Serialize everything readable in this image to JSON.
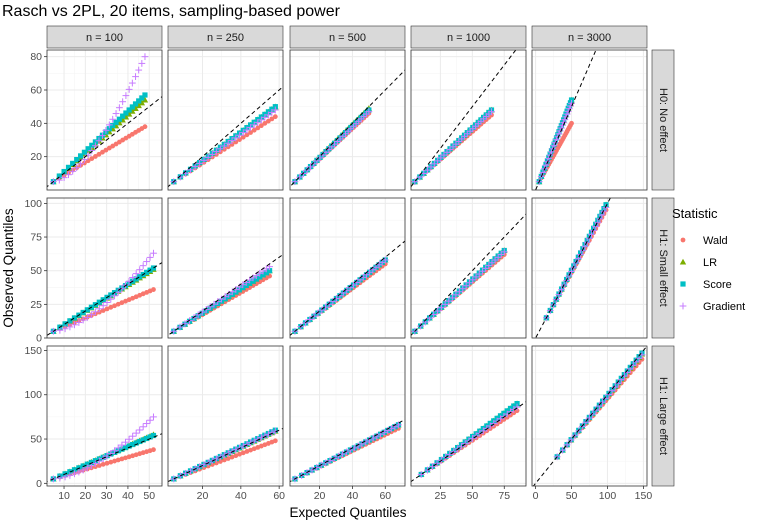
{
  "colors": {
    "Wald": "#F8766D",
    "LR": "#7CAE00",
    "Score": "#00BFC4",
    "Gradient": "#C77CFF",
    "strip_fill": "#D9D9D9",
    "grid_major": "#EBEBEB",
    "grid_minor": "#F5F5F5",
    "panel_border": "#333333"
  },
  "chart_data": {
    "type": "scatter",
    "title": "Rasch vs 2PL, 20 items, sampling-based power",
    "xlabel": "Expected Quantiles",
    "ylabel": "Observed Quantiles",
    "reference_line": "y = x (dashed)",
    "grid": true,
    "legend": {
      "title": "Statistic",
      "placement": "right",
      "entries": [
        {
          "name": "Wald",
          "shape": "circle"
        },
        {
          "name": "LR",
          "shape": "triangle"
        },
        {
          "name": "Score",
          "shape": "square"
        },
        {
          "name": "Gradient",
          "shape": "plus"
        }
      ]
    },
    "columns": [
      {
        "label": "n = 100",
        "xlim": [
          2,
          56
        ],
        "ticks": [
          10,
          20,
          30,
          40,
          50
        ]
      },
      {
        "label": "n = 250",
        "xlim": [
          2,
          62
        ],
        "ticks": [
          20,
          40,
          60
        ]
      },
      {
        "label": "n = 500",
        "xlim": [
          2,
          72
        ],
        "ticks": [
          20,
          40,
          60
        ]
      },
      {
        "label": "n = 1000",
        "xlim": [
          2,
          92
        ],
        "ticks": [
          25,
          50,
          75
        ]
      },
      {
        "label": "n = 3000",
        "xlim": [
          -5,
          155
        ],
        "ticks": [
          0,
          50,
          100,
          150
        ]
      }
    ],
    "rows": [
      {
        "label": "H0: No effect",
        "ylim": [
          0,
          84
        ],
        "ticks": [
          20,
          40,
          60,
          80
        ]
      },
      {
        "label": "H1: Small effect",
        "ylim": [
          0,
          104
        ],
        "ticks": [
          0,
          25,
          50,
          75,
          100
        ]
      },
      {
        "label": "H1: Large effect",
        "ylim": [
          -3,
          155
        ],
        "ticks": [
          0,
          50,
          100,
          150
        ]
      }
    ],
    "panels": [
      [
        {
          "x": [
            5,
            48
          ],
          "Wald": [
            5,
            38
          ],
          "LR": [
            5,
            54
          ],
          "Score": [
            5,
            57
          ],
          "Gradient": [
            5,
            80
          ]
        },
        {
          "x": [
            5,
            58
          ],
          "Wald": [
            5,
            44
          ],
          "LR": [
            5,
            50
          ],
          "Score": [
            5,
            50
          ],
          "Gradient": [
            5,
            48
          ]
        },
        {
          "x": [
            5,
            50
          ],
          "Wald": [
            5,
            46
          ],
          "LR": [
            5,
            49
          ],
          "Score": [
            5,
            48
          ],
          "Gradient": [
            5,
            47
          ]
        },
        {
          "x": [
            5,
            65
          ],
          "Wald": [
            5,
            45
          ],
          "LR": [
            5,
            48
          ],
          "Score": [
            5,
            48
          ],
          "Gradient": [
            5,
            47
          ]
        },
        {
          "x": [
            5,
            50
          ],
          "Wald": [
            5,
            40
          ],
          "LR": [
            5,
            54
          ],
          "Score": [
            5,
            54
          ],
          "Gradient": [
            5,
            52
          ]
        }
      ],
      [
        {
          "x": [
            5,
            52
          ],
          "Wald": [
            5,
            36
          ],
          "LR": [
            5,
            51
          ],
          "Score": [
            5,
            52
          ],
          "Gradient": [
            5,
            63
          ]
        },
        {
          "x": [
            5,
            55
          ],
          "Wald": [
            5,
            46
          ],
          "LR": [
            5,
            50
          ],
          "Score": [
            5,
            50
          ],
          "Gradient": [
            5,
            53
          ]
        },
        {
          "x": [
            5,
            60
          ],
          "Wald": [
            5,
            55
          ],
          "LR": [
            5,
            58
          ],
          "Score": [
            5,
            58
          ],
          "Gradient": [
            5,
            58
          ]
        },
        {
          "x": [
            5,
            75
          ],
          "Wald": [
            5,
            62
          ],
          "LR": [
            5,
            65
          ],
          "Score": [
            5,
            65
          ],
          "Gradient": [
            5,
            64
          ]
        },
        {
          "x": [
            15,
            98
          ],
          "Wald": [
            15,
            95
          ],
          "LR": [
            15,
            99
          ],
          "Score": [
            15,
            99
          ],
          "Gradient": [
            15,
            97
          ]
        }
      ],
      [
        {
          "x": [
            5,
            52
          ],
          "Wald": [
            5,
            38
          ],
          "LR": [
            5,
            55
          ],
          "Score": [
            5,
            54
          ],
          "Gradient": [
            5,
            75
          ]
        },
        {
          "x": [
            5,
            58
          ],
          "Wald": [
            5,
            48
          ],
          "LR": [
            5,
            59
          ],
          "Score": [
            5,
            60
          ],
          "Gradient": [
            5,
            59
          ]
        },
        {
          "x": [
            5,
            68
          ],
          "Wald": [
            5,
            62
          ],
          "LR": [
            5,
            66
          ],
          "Score": [
            5,
            66
          ],
          "Gradient": [
            5,
            66
          ]
        },
        {
          "x": [
            10,
            85
          ],
          "Wald": [
            10,
            82
          ],
          "LR": [
            10,
            90
          ],
          "Score": [
            10,
            90
          ],
          "Gradient": [
            10,
            86
          ]
        },
        {
          "x": [
            30,
            148
          ],
          "Wald": [
            30,
            140
          ],
          "LR": [
            30,
            146
          ],
          "Score": [
            30,
            147
          ],
          "Gradient": [
            30,
            145
          ]
        }
      ]
    ]
  }
}
